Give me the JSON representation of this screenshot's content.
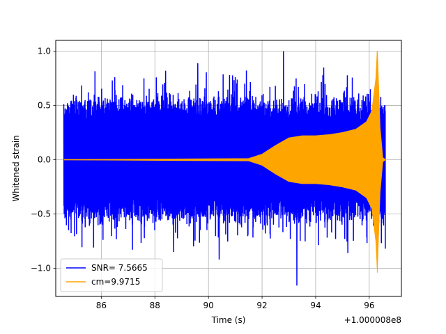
{
  "chart_data": {
    "type": "line",
    "title": "",
    "xlabel": "Time (s)",
    "ylabel": "Whitened strain",
    "x_offset_label": "+1.000008e8",
    "xlim": [
      84.3,
      97.2
    ],
    "ylim": [
      -1.26,
      1.1
    ],
    "x_ticks": [
      86,
      88,
      90,
      92,
      94,
      96
    ],
    "x_tick_labels": [
      "86",
      "88",
      "90",
      "92",
      "94",
      "96"
    ],
    "y_ticks": [
      -1.0,
      -0.5,
      0.0,
      0.5,
      1.0
    ],
    "y_tick_labels": [
      "−1.0",
      "−0.5",
      "0.0",
      "0.5",
      "1.0"
    ],
    "grid": true,
    "legend_position": "lower-left",
    "series": [
      {
        "name": "SNR= 7.5665",
        "color": "#0000ff",
        "kind": "noise",
        "x_range": [
          84.6,
          96.6
        ],
        "typical_amplitude": 0.55,
        "peaks": [
          {
            "x": 86.5,
            "y": 0.76
          },
          {
            "x": 88.4,
            "y": 0.82
          },
          {
            "x": 88.7,
            "y": -0.85
          },
          {
            "x": 89.6,
            "y": 0.89
          },
          {
            "x": 90.4,
            "y": -0.92
          },
          {
            "x": 91.0,
            "y": 0.76
          },
          {
            "x": 92.8,
            "y": 1.0
          },
          {
            "x": 93.3,
            "y": -1.16
          },
          {
            "x": 94.3,
            "y": 0.85
          },
          {
            "x": 95.2,
            "y": -0.86
          },
          {
            "x": 96.6,
            "y": -0.82
          }
        ]
      },
      {
        "name": "cm=9.9715",
        "color": "#ffa500",
        "kind": "chirp",
        "x_range": [
          84.6,
          96.6
        ],
        "envelope": [
          {
            "x": 84.6,
            "y": 0.0
          },
          {
            "x": 91.5,
            "y": 0.01
          },
          {
            "x": 92.0,
            "y": 0.05
          },
          {
            "x": 92.5,
            "y": 0.13
          },
          {
            "x": 93.0,
            "y": 0.2
          },
          {
            "x": 93.5,
            "y": 0.22
          },
          {
            "x": 94.0,
            "y": 0.22
          },
          {
            "x": 94.5,
            "y": 0.23
          },
          {
            "x": 95.0,
            "y": 0.25
          },
          {
            "x": 95.5,
            "y": 0.28
          },
          {
            "x": 95.9,
            "y": 0.35
          },
          {
            "x": 96.1,
            "y": 0.45
          },
          {
            "x": 96.25,
            "y": 0.75
          },
          {
            "x": 96.3,
            "y": 1.0
          },
          {
            "x": 96.4,
            "y": 0.3
          },
          {
            "x": 96.5,
            "y": 0.02
          },
          {
            "x": 96.6,
            "y": 0.0
          }
        ],
        "extremes": [
          {
            "x": 96.3,
            "y": 1.0
          },
          {
            "x": 96.3,
            "y": -1.04
          }
        ]
      }
    ]
  }
}
